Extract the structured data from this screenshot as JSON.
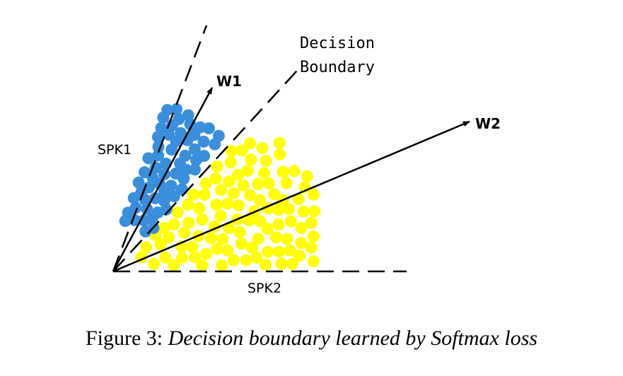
{
  "diagram": {
    "labels": {
      "w1": "W1",
      "w2": "W2",
      "spk1": "SPK1",
      "spk2": "SPK2",
      "decision_line1": "Decision",
      "decision_line2": "Boundary"
    },
    "colors": {
      "spk1_points": "#3a8fdc",
      "spk2_points": "#ffff00",
      "lines": "#000000",
      "background": "#ffffff"
    }
  },
  "caption": {
    "prefix": "Figure 3: ",
    "text": "Decision boundary learned by Softmax loss"
  }
}
